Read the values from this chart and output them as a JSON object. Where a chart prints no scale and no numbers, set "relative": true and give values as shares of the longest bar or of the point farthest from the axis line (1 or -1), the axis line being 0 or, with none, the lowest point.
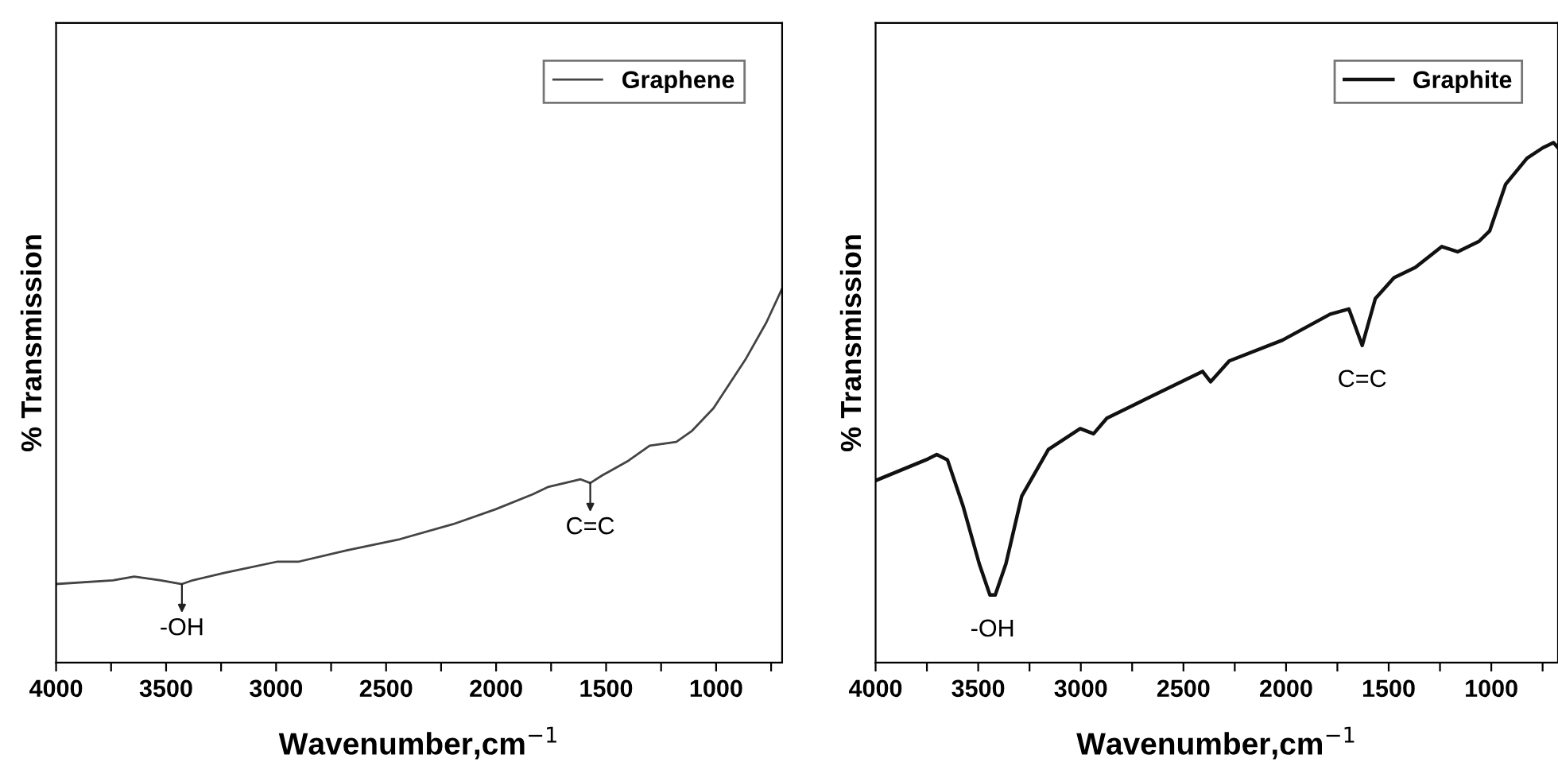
{
  "chart_data": [
    {
      "type": "line",
      "relative": true,
      "xlabel": "Wavenumber,cm$^{−1}$",
      "ylabel": "% Transmission",
      "legend": "top right",
      "xlim": [
        4000,
        700
      ],
      "xticks": [
        4000,
        {
          "value": 3750,
          "label": null
        },
        3500,
        {
          "value": 3250,
          "label": null
        },
        3000,
        {
          "value": 2750,
          "label": null
        },
        2500,
        {
          "value": 2250,
          "label": null
        },
        2000,
        {
          "value": 1750,
          "label": null
        },
        1500,
        {
          "value": 1250,
          "label": null
        },
        1000,
        {
          "value": 750,
          "label": null
        }
      ],
      "series": [
        {
          "name": "Graphene",
          "color": "#444444",
          "x": [
            4000,
            3742,
            3645,
            3524,
            3428,
            3379,
            3234,
            2993,
            2896,
            2679,
            2437,
            2196,
            2002,
            1833,
            1761,
            1688,
            1616,
            1572,
            1519,
            1398,
            1302,
            1181,
            1109,
            1012,
            867,
            771,
            700
          ],
          "values": [
            0.21,
            0.22,
            0.23,
            0.22,
            0.21,
            0.22,
            0.24,
            0.27,
            0.27,
            0.3,
            0.33,
            0.37,
            0.41,
            0.45,
            0.47,
            0.48,
            0.49,
            0.48,
            0.5,
            0.54,
            0.58,
            0.59,
            0.62,
            0.68,
            0.81,
            0.91,
            1.0
          ]
        }
      ],
      "annotations": [
        {
          "text": "-OH",
          "x": 3428,
          "y": 0.21
        },
        {
          "text": "C=C",
          "x": 1572,
          "y": 0.48
        }
      ]
    },
    {
      "type": "line",
      "relative": true,
      "xlabel": "Wavenumber,cm$^{−1}$",
      "ylabel": "% Transmission",
      "legend": "top right",
      "xlim": [
        4000,
        675
      ],
      "xticks": [
        4000,
        {
          "value": 3750,
          "label": null
        },
        3500,
        {
          "value": 3250,
          "label": null
        },
        3000,
        {
          "value": 2750,
          "label": null
        },
        2500,
        {
          "value": 2250,
          "label": null
        },
        2000,
        {
          "value": 1750,
          "label": null
        },
        1500,
        {
          "value": 1250,
          "label": null
        },
        1000,
        {
          "value": 750,
          "label": null
        }
      ],
      "series": [
        {
          "name": "Graphite",
          "color": "#111111",
          "x": [
            4000,
            3754,
            3702,
            3650,
            3573,
            3495,
            3443,
            3417,
            3365,
            3288,
            3158,
            3003,
            2938,
            2873,
            2666,
            2407,
            2368,
            2277,
            2018,
            1785,
            1694,
            1629,
            1565,
            1474,
            1370,
            1241,
            1163,
            1060,
            1008,
            930,
            826,
            749,
            697,
            675
          ],
          "values": [
            0.35,
            0.39,
            0.4,
            0.39,
            0.3,
            0.19,
            0.13,
            0.13,
            0.19,
            0.32,
            0.41,
            0.45,
            0.44,
            0.47,
            0.51,
            0.56,
            0.54,
            0.58,
            0.62,
            0.67,
            0.68,
            0.61,
            0.7,
            0.74,
            0.76,
            0.8,
            0.79,
            0.81,
            0.83,
            0.92,
            0.97,
            0.99,
            1.0,
            0.99
          ]
        }
      ],
      "annotations": [
        {
          "text": "-OH",
          "x": 3430,
          "y": 0.13
        },
        {
          "text": "C=C",
          "x": 1629,
          "y": 0.61
        }
      ]
    }
  ]
}
